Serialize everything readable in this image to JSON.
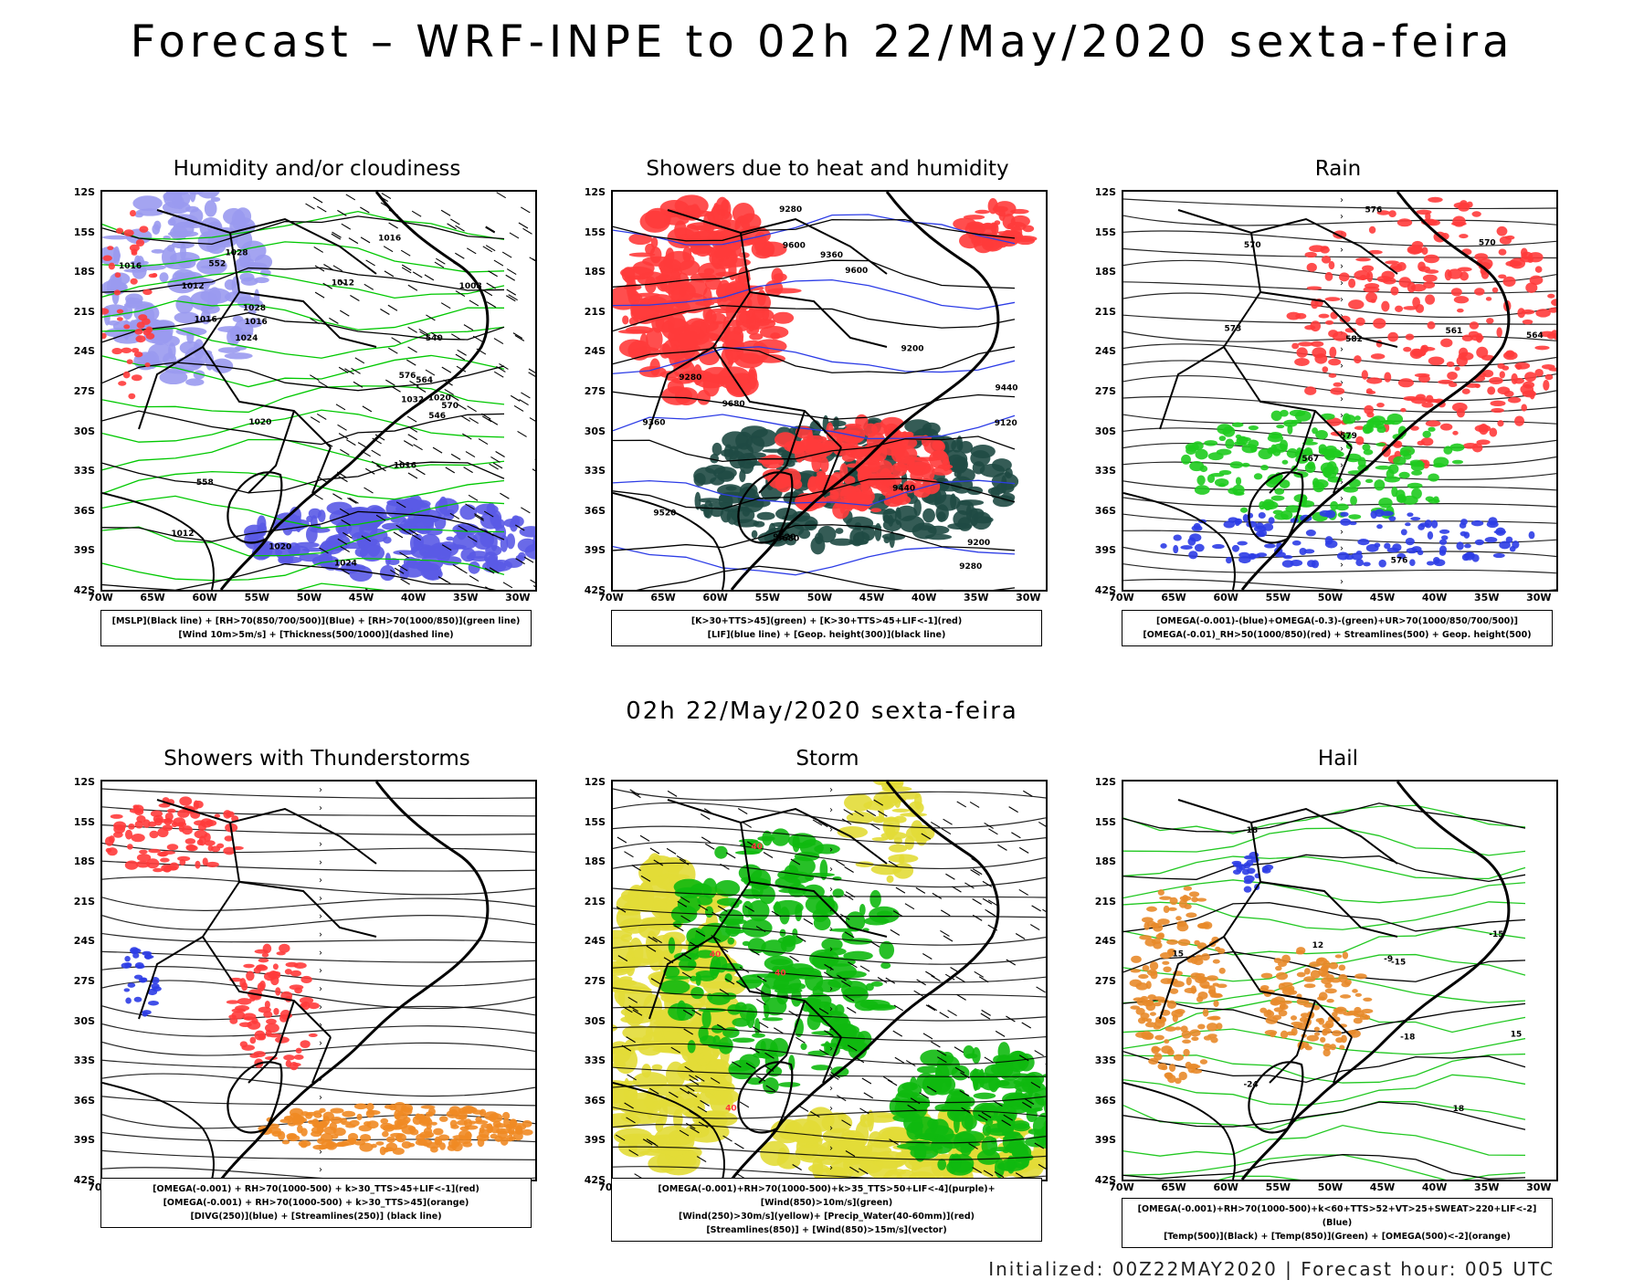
{
  "page": {
    "title": "Forecast – WRF-INPE to 02h 22/May/2020 sexta-feira",
    "subtitle": "02h 22/May/2020 sexta-feira",
    "footer": "Initialized: 00Z22MAY2020 | Forecast hour: 005 UTC"
  },
  "axes": {
    "lat_labels": [
      "12S",
      "15S",
      "18S",
      "21S",
      "24S",
      "27S",
      "30S",
      "33S",
      "36S",
      "39S",
      "42S"
    ],
    "lon_labels": [
      "70W",
      "65W",
      "60W",
      "55W",
      "50W",
      "45W",
      "40W",
      "35W",
      "30W"
    ]
  },
  "panels": [
    {
      "title": "Humidity and/or cloudiness",
      "legend": [
        "[MSLP](Black line) + [RH>70(850/700/500)](Blue) + [RH>70(1000/850)](green line)",
        "[Wind 10m>5m/s] + [Thickness(500/1000)](dashed line)"
      ],
      "contour_labels": [
        "1016",
        "1016",
        "1012",
        "1016",
        "1020",
        "1012",
        "1016",
        "1008",
        "1012",
        "1024",
        "1028",
        "1032",
        "1028",
        "1020",
        "1016",
        "1024",
        "1020",
        "576",
        "570",
        "564",
        "558",
        "552",
        "546",
        "540"
      ],
      "colors": {
        "fill": "#9a9af0",
        "line": "#00c800",
        "accent": "#ff3b3b"
      }
    },
    {
      "title": "Showers due to heat and humidity",
      "legend": [
        "[K>30+TTS>45](green) + [K>30+TTS>45+LIF<-1](red)",
        "[LIF](blue line) + [Geop. height(300)](black line)"
      ],
      "contour_labels": [
        "9680",
        "9680",
        "9600",
        "9520",
        "9600",
        "9440",
        "9360",
        "9280",
        "9200",
        "9120",
        "9520",
        "9440",
        "9360",
        "9280",
        "9200",
        "9280"
      ],
      "colors": {
        "fill": "#ff3b3b",
        "dark": "#1f4a44",
        "line": "#2c3ce6"
      }
    },
    {
      "title": "Rain",
      "legend": [
        "[OMEGA(-0.001)-(blue)+OMEGA(-0.3)-(green)+UR>70(1000/850/700/500)]",
        "[OMEGA(-0.01)_RH>50(1000/850)(red) + Streamlines(500) + Geop. height(500)"
      ],
      "contour_labels": [
        "576",
        "573",
        "570",
        "567",
        "564",
        "561",
        "579",
        "582",
        "576",
        "570"
      ],
      "colors": {
        "fill": "#ff3b3b",
        "green": "#1ecb1e",
        "blue": "#2c3ce6"
      }
    },
    {
      "title": "Showers with Thunderstorms",
      "legend": [
        "[OMEGA(-0.001) + RH>70(1000-500) + k>30_TTS>45+LIF<-1](red)",
        "[OMEGA(-0.001) + RH>70(1000-500) + k>30_TTS>45](orange)",
        "[DIVG(250)](blue) + [Streamlines(250)] (black line)"
      ],
      "contour_labels": [],
      "colors": {
        "red": "#ff3b3b",
        "orange": "#f08a24",
        "blue": "#2c3ce6"
      }
    },
    {
      "title": "Storm",
      "legend": [
        "[OMEGA(-0.001)+RH>70(1000-500)+k>35_TTS>50+LIF<-4](purple)+[Wind(850)>10m/s](green)",
        "[Wind(250)>30m/s](yellow)+ [Precip_Water(40-60mm)](red)",
        "[Streamlines(850)] + [Wind(850)>15m/s](vector)"
      ],
      "contour_labels": [
        "40",
        "40",
        "40",
        "40"
      ],
      "colors": {
        "yellow": "#e2dc37",
        "green": "#10b910",
        "red": "#ff3b3b"
      }
    },
    {
      "title": "Hail",
      "legend": [
        "[OMEGA(-0.001)+RH>70(1000-500)+k<60+TTS>52+VT>25+SWEAT>220+LIF<-2](Blue)",
        "[Temp(500)](Black) + [Temp(850)](Green) + [OMEGA(500)<-2](orange)"
      ],
      "contour_labels": [
        "-18",
        "-15",
        "-24",
        "-18",
        "-15",
        "-9",
        "15",
        "18",
        "15",
        "12"
      ],
      "colors": {
        "green": "#22c822",
        "orange": "#e8892a",
        "blue": "#2c3ce6"
      }
    }
  ]
}
